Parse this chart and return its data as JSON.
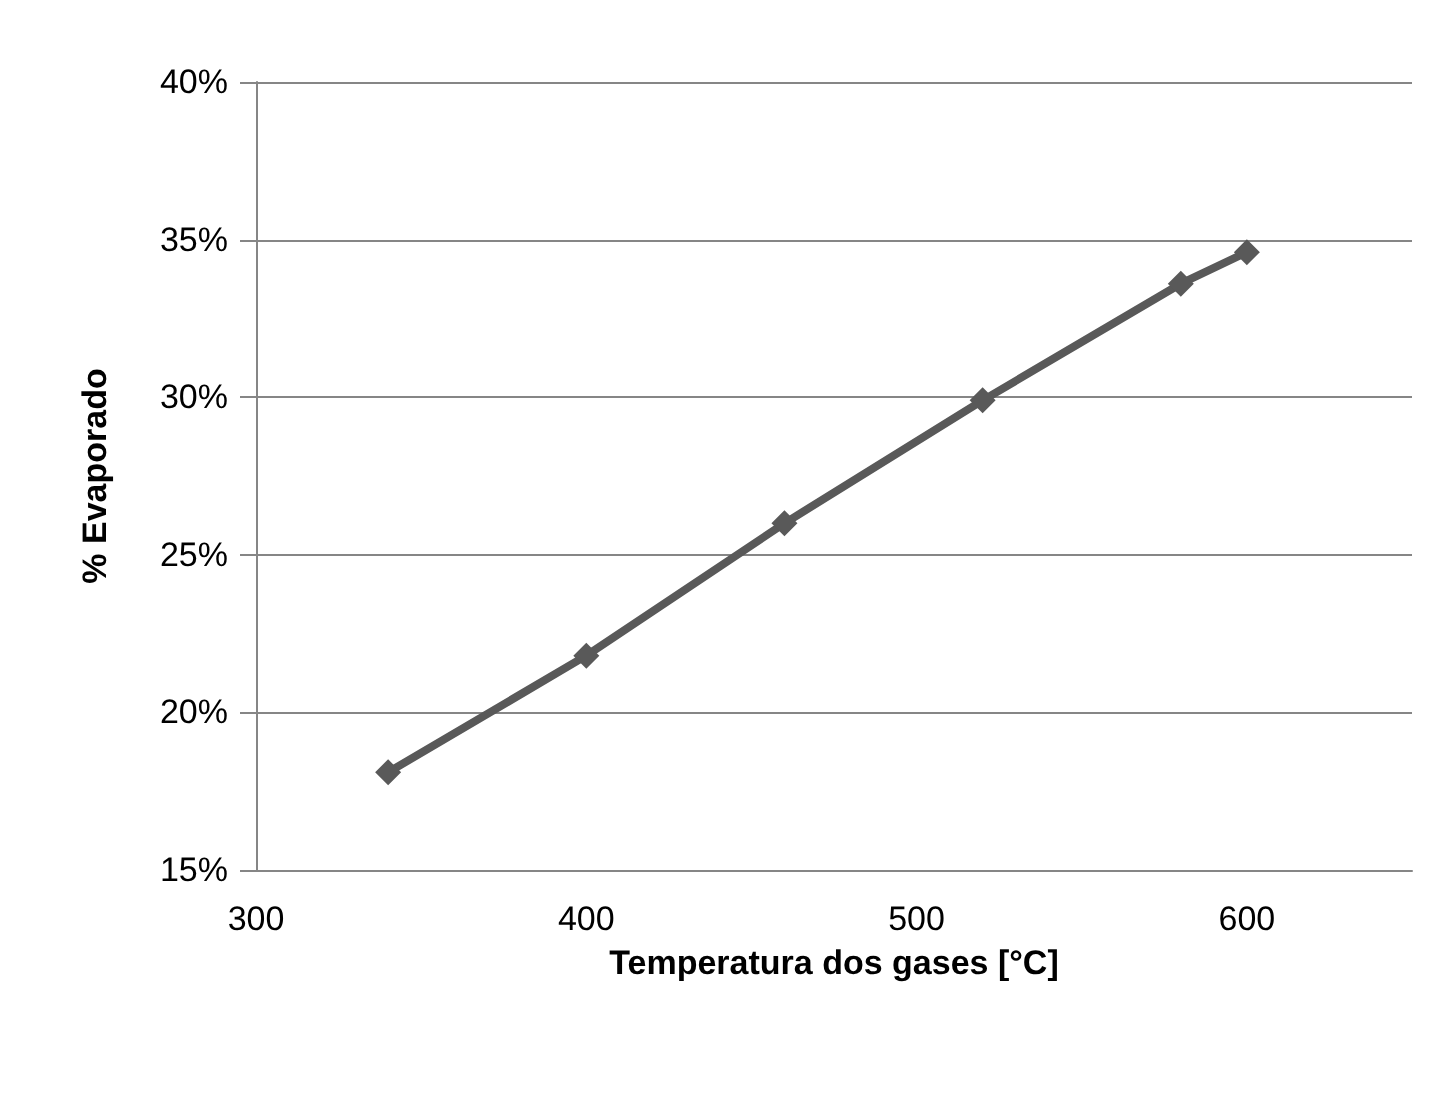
{
  "chart_data": {
    "type": "line",
    "xlabel": "Temperatura dos gases [°C]",
    "ylabel": "% Evaporado",
    "x": [
      340,
      400,
      460,
      520,
      580,
      600
    ],
    "series": [
      {
        "color": "#595959",
        "values": [
          18.1,
          21.8,
          26.0,
          29.9,
          33.6,
          34.6
        ]
      }
    ],
    "xlim": [
      300,
      650
    ],
    "xticks": [
      300,
      400,
      500,
      600
    ],
    "ylim": [
      15,
      40
    ],
    "yticks": [
      {
        "value": 15,
        "label": "15%"
      },
      {
        "value": 20,
        "label": "20%"
      },
      {
        "value": 25,
        "label": "25%"
      },
      {
        "value": 30,
        "label": "30%"
      },
      {
        "value": 35,
        "label": "35%"
      },
      {
        "value": 40,
        "label": "40%"
      }
    ],
    "grid": "y",
    "marker": "diamond",
    "line_style": "solid"
  }
}
